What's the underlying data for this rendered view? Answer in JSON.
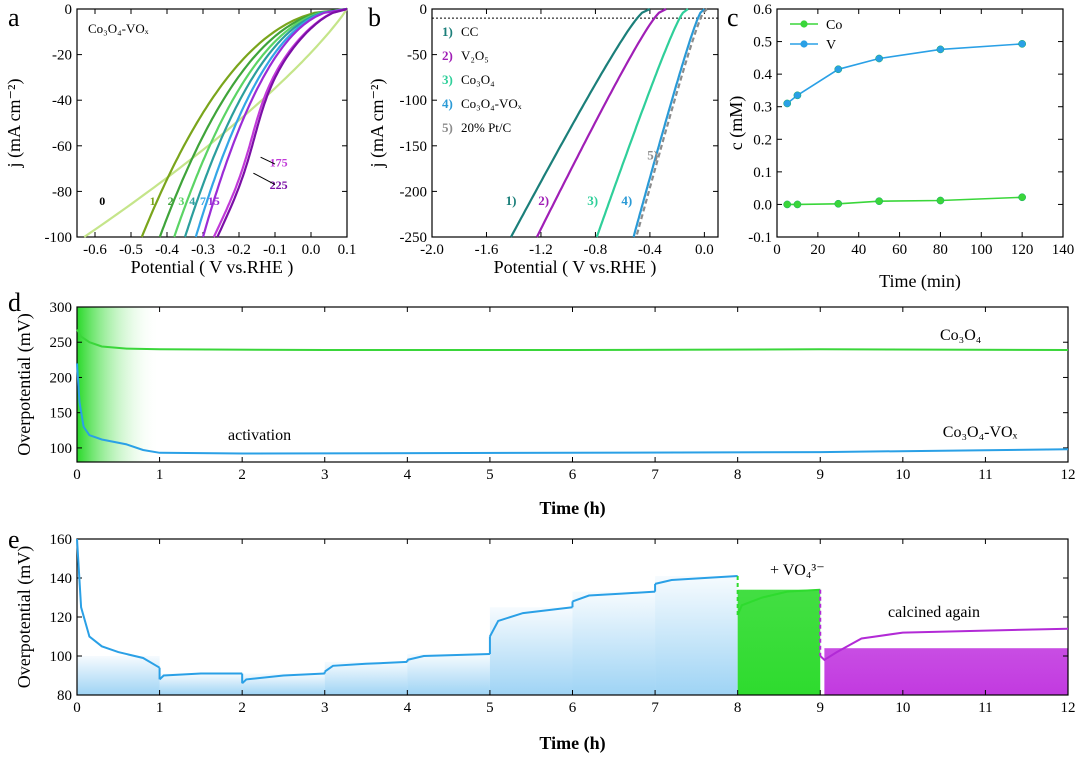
{
  "colors": {
    "c0": "#c5e58a",
    "c1": "#7aa51c",
    "c2": "#3fa43a",
    "c3": "#5bd465",
    "c4": "#2b9e9d",
    "c7": "#34a6e6",
    "c15": "#9b2cd6",
    "c175": "#c13ad8",
    "c225": "#7b0fa6",
    "cc": "#1b7f7a",
    "v2o5": "#a01fb6",
    "co3o4": "#2fcf9a",
    "covox": "#2a9ad6",
    "ptc": "#8c8c8c",
    "co": "#3ad63a",
    "v": "#2aa0e6",
    "cvbar": "#2aa0e6",
    "green": "#2edb2e",
    "purple": "#b22ad6"
  },
  "chart_data": [
    {
      "panel": "a",
      "type": "line",
      "title": "Co₃O₄-VOₓ",
      "xlabel": "Potential ( V vs.RHE )",
      "ylabel": "j (mA cm⁻²)",
      "xlim": [
        -0.65,
        0.1
      ],
      "ylim": [
        -100,
        0
      ],
      "xticks": [
        "-0.6",
        "-0.5",
        "-0.4",
        "-0.3",
        "-0.2",
        "-0.1",
        "0.0",
        "0.1"
      ],
      "yticks": [
        "0",
        "-20",
        "-40",
        "-60",
        "-80",
        "-100"
      ],
      "series": [
        {
          "name": "0",
          "onset": 0.1,
          "x100": -0.63,
          "shape": "linear",
          "color": "c0"
        },
        {
          "name": "1",
          "onset": 0.1,
          "x100": -0.47,
          "shape": "knee",
          "color": "c1"
        },
        {
          "name": "2",
          "onset": 0.1,
          "x100": -0.42,
          "shape": "knee",
          "color": "c2"
        },
        {
          "name": "3",
          "onset": 0.1,
          "x100": -0.38,
          "shape": "knee",
          "color": "c3"
        },
        {
          "name": "4",
          "onset": 0.1,
          "x100": -0.35,
          "shape": "knee",
          "color": "c4"
        },
        {
          "name": "7",
          "onset": 0.1,
          "x100": -0.32,
          "shape": "knee",
          "color": "c7"
        },
        {
          "name": "15",
          "onset": 0.1,
          "x100": -0.3,
          "shape": "knee",
          "color": "c15"
        },
        {
          "name": "175",
          "onset": 0.1,
          "x100": -0.27,
          "shape": "wave",
          "color": "c175"
        },
        {
          "name": "225",
          "onset": 0.1,
          "x100": -0.26,
          "shape": "wave",
          "color": "c225"
        }
      ],
      "labels": [
        {
          "text": "0",
          "x": -0.58,
          "y": -86,
          "color": "#000000"
        },
        {
          "text": "1",
          "x": -0.44,
          "y": -86,
          "color": "#7aa51c"
        },
        {
          "text": "2",
          "x": -0.39,
          "y": -86,
          "color": "#3fa43a"
        },
        {
          "text": "3",
          "x": -0.36,
          "y": -86,
          "color": "#5bd465"
        },
        {
          "text": "4",
          "x": -0.33,
          "y": -86,
          "color": "#2b9e9d"
        },
        {
          "text": "7",
          "x": -0.3,
          "y": -86,
          "color": "#34a6e6"
        },
        {
          "text": "15",
          "x": -0.27,
          "y": -86,
          "color": "#9b2cd6"
        },
        {
          "text": "175",
          "x": -0.09,
          "y": -69,
          "color": "#c13ad8"
        },
        {
          "text": "225",
          "x": -0.09,
          "y": -79,
          "color": "#7b0fa6"
        }
      ]
    },
    {
      "panel": "b",
      "type": "line",
      "xlabel": "Potential ( V vs.RHE )",
      "ylabel": "j (mA cm⁻²)",
      "xlim": [
        -2.0,
        0.1
      ],
      "ylim": [
        -250,
        0
      ],
      "xticks": [
        "-2.0",
        "-1.6",
        "-1.2",
        "-0.8",
        "-0.4",
        "0.0"
      ],
      "yticks": [
        "0",
        "-50",
        "-100",
        "-150",
        "-200",
        "-250"
      ],
      "hline": -10,
      "series": [
        {
          "name": "1) CC",
          "onset": -0.4,
          "x250": -1.42,
          "color": "cc"
        },
        {
          "name": "2) V₂O₅",
          "onset": -0.28,
          "x250": -1.23,
          "color": "v2o5"
        },
        {
          "name": "3) Co₃O₄",
          "onset": -0.12,
          "x250": -0.79,
          "color": "co3o4"
        },
        {
          "name": "4) Co₃O₄-VOₓ",
          "onset": 0.0,
          "x250": -0.52,
          "color": "covox"
        },
        {
          "name": "5) 20% Pt/C",
          "onset": 0.02,
          "x250": -0.5,
          "color": "ptc",
          "dashed": true
        }
      ],
      "legend": [
        {
          "num": "1)",
          "text": "CC",
          "color": "#1b7f7a"
        },
        {
          "num": "2)",
          "text": "V₂O₅",
          "color": "#a01fb6"
        },
        {
          "num": "3)",
          "text": "Co₃O₄",
          "color": "#2fcf9a"
        },
        {
          "num": "4)",
          "text": "Co₃O₄-VOₓ",
          "color": "#2a9ad6"
        },
        {
          "num": "5)",
          "text": "20% Pt/C",
          "color": "#8c8c8c"
        }
      ],
      "labels": [
        {
          "text": "1)",
          "x": -1.42,
          "y": -215,
          "color": "#1b7f7a"
        },
        {
          "text": "2)",
          "x": -1.18,
          "y": -215,
          "color": "#a01fb6"
        },
        {
          "text": "3)",
          "x": -0.82,
          "y": -215,
          "color": "#2fcf9a"
        },
        {
          "text": "4)",
          "x": -0.57,
          "y": -215,
          "color": "#2a9ad6"
        },
        {
          "text": "5)",
          "x": -0.38,
          "y": -165,
          "color": "#8c8c8c"
        }
      ]
    },
    {
      "panel": "c",
      "type": "line",
      "xlabel": "Time (min)",
      "ylabel": "c (mM)",
      "xlim": [
        0,
        140
      ],
      "ylim": [
        -0.1,
        0.6
      ],
      "xticks": [
        "0",
        "20",
        "40",
        "60",
        "80",
        "100",
        "120",
        "140"
      ],
      "yticks": [
        "0.6",
        "0.5",
        "0.4",
        "0.3",
        "0.2",
        "0.1",
        "0.0",
        "-0.1"
      ],
      "legend": "top-left",
      "series": [
        {
          "name": "Co",
          "x": [
            5,
            10,
            30,
            50,
            80,
            120
          ],
          "y": [
            0.0,
            0.0,
            0.002,
            0.01,
            0.012,
            0.022
          ],
          "color": "co"
        },
        {
          "name": "V",
          "x": [
            5,
            10,
            30,
            50,
            80,
            120
          ],
          "y": [
            0.31,
            0.335,
            0.415,
            0.448,
            0.476,
            0.493
          ],
          "color": "v"
        }
      ]
    },
    {
      "panel": "d",
      "type": "line",
      "xlabel": "Time (h)",
      "ylabel": "Overpotential (mV)",
      "xlim": [
        0,
        12
      ],
      "ylim": [
        80,
        300
      ],
      "xticks": [
        "0",
        "1",
        "2",
        "3",
        "4",
        "5",
        "6",
        "7",
        "8",
        "9",
        "10",
        "11",
        "12"
      ],
      "yticks": [
        "300",
        "250",
        "200",
        "150",
        "100"
      ],
      "series": [
        {
          "name": "Co₃O₄",
          "x": [
            0,
            0.05,
            0.15,
            0.3,
            0.6,
            1,
            3,
            6,
            9,
            12
          ],
          "y": [
            268,
            258,
            250,
            244,
            241,
            240,
            239,
            239,
            240,
            239
          ],
          "color": "co"
        },
        {
          "name": "Co₃O₄-VOₓ",
          "x": [
            0,
            0.03,
            0.08,
            0.15,
            0.3,
            0.6,
            0.8,
            1,
            2,
            6,
            9,
            12
          ],
          "y": [
            220,
            165,
            130,
            118,
            112,
            105,
            97,
            93,
            92,
            93,
            94,
            98
          ],
          "color": "v"
        }
      ],
      "annotations": [
        "activation",
        "Co₃O₄",
        "Co₃O₄-VOₓ"
      ]
    },
    {
      "panel": "e",
      "type": "line",
      "xlabel": "Time (h)",
      "ylabel": "Overpotential (mV)",
      "xlim": [
        0,
        12
      ],
      "ylim": [
        80,
        160
      ],
      "xticks": [
        "0",
        "1",
        "2",
        "3",
        "4",
        "5",
        "6",
        "7",
        "8",
        "9",
        "10",
        "11",
        "12"
      ],
      "yticks": [
        "160",
        "140",
        "120",
        "100",
        "80"
      ],
      "series": [
        {
          "name": "Co₃O₄-VOₓ",
          "color": "v",
          "segments": [
            {
              "x": [
                0,
                0.05,
                0.15,
                0.3,
                0.5,
                0.8,
                1.0
              ],
              "y": [
                160,
                125,
                110,
                105,
                102,
                99,
                94
              ]
            },
            {
              "x": [
                1.0,
                1.05,
                1.5,
                2.0
              ],
              "y": [
                88,
                90,
                91,
                91
              ]
            },
            {
              "x": [
                2.0,
                2.05,
                2.5,
                3.0
              ],
              "y": [
                86,
                88,
                90,
                91
              ]
            },
            {
              "x": [
                3.0,
                3.1,
                3.5,
                4.0
              ],
              "y": [
                92,
                95,
                96,
                97
              ]
            },
            {
              "x": [
                4.0,
                4.2,
                5.0
              ],
              "y": [
                98,
                100,
                101
              ]
            },
            {
              "x": [
                5.0,
                5.1,
                5.4,
                6.0
              ],
              "y": [
                110,
                118,
                122,
                125
              ]
            },
            {
              "x": [
                6.0,
                6.2,
                6.6,
                7.0
              ],
              "y": [
                128,
                131,
                132,
                133
              ]
            },
            {
              "x": [
                7.0,
                7.2,
                7.6,
                8.0
              ],
              "y": [
                137,
                139,
                140,
                141
              ]
            }
          ]
        },
        {
          "name": "+ VO₄³⁻",
          "color": "green",
          "segments": [
            {
              "x": [
                8.0,
                8.05,
                8.3,
                8.6,
                9.0
              ],
              "y": [
                121,
                126,
                130,
                133,
                134
              ]
            }
          ]
        },
        {
          "name": "calcined again",
          "color": "purple",
          "segments": [
            {
              "x": [
                9.0,
                9.05,
                9.2,
                9.5,
                10,
                11,
                12
              ],
              "y": [
                100,
                98,
                102,
                109,
                112,
                113,
                114
              ]
            }
          ]
        }
      ],
      "annotations": [
        "+ VO₄³⁻",
        "calcined again"
      ]
    }
  ]
}
